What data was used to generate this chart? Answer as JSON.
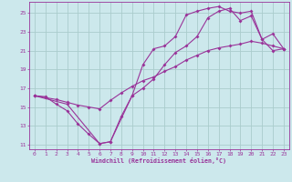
{
  "xlabel": "Windchill (Refroidissement éolien,°C)",
  "background_color": "#cce8ec",
  "grid_color": "#aacccc",
  "line_color": "#993399",
  "xlim": [
    -0.5,
    23.5
  ],
  "ylim": [
    10.5,
    26.2
  ],
  "xticks": [
    0,
    1,
    2,
    3,
    4,
    5,
    6,
    7,
    8,
    9,
    10,
    11,
    12,
    13,
    14,
    15,
    16,
    17,
    18,
    19,
    20,
    21,
    22,
    23
  ],
  "yticks": [
    11,
    13,
    15,
    17,
    19,
    21,
    23,
    25
  ],
  "curve1_x": [
    0,
    1,
    2,
    3,
    4,
    5,
    6,
    7,
    8,
    9,
    10,
    11,
    12,
    13,
    14,
    15,
    16,
    17,
    18,
    19,
    20,
    21,
    22,
    23
  ],
  "curve1_y": [
    16.2,
    16.1,
    15.3,
    14.6,
    13.2,
    12.1,
    11.1,
    11.3,
    14.0,
    16.2,
    19.5,
    21.2,
    21.5,
    22.5,
    24.8,
    25.2,
    25.5,
    25.7,
    25.2,
    25.0,
    25.2,
    22.2,
    21.0,
    21.2
  ],
  "curve2_x": [
    0,
    1,
    2,
    3,
    4,
    5,
    6,
    7,
    8,
    9,
    10,
    11,
    12,
    13,
    14,
    15,
    16,
    17,
    18,
    19,
    20,
    21,
    22,
    23
  ],
  "curve2_y": [
    16.2,
    16.0,
    15.8,
    15.5,
    15.2,
    15.0,
    14.8,
    15.7,
    16.5,
    17.2,
    17.8,
    18.2,
    18.8,
    19.3,
    20.0,
    20.5,
    21.0,
    21.3,
    21.5,
    21.7,
    22.0,
    21.8,
    21.5,
    21.2
  ],
  "curve3_x": [
    0,
    3,
    6,
    7,
    9,
    10,
    11,
    12,
    13,
    14,
    15,
    16,
    17,
    18,
    19,
    20,
    21,
    22,
    23
  ],
  "curve3_y": [
    16.2,
    15.3,
    11.1,
    11.3,
    16.2,
    17.0,
    18.0,
    19.5,
    20.8,
    21.5,
    22.5,
    24.5,
    25.2,
    25.5,
    24.2,
    24.7,
    22.2,
    22.8,
    21.2
  ]
}
